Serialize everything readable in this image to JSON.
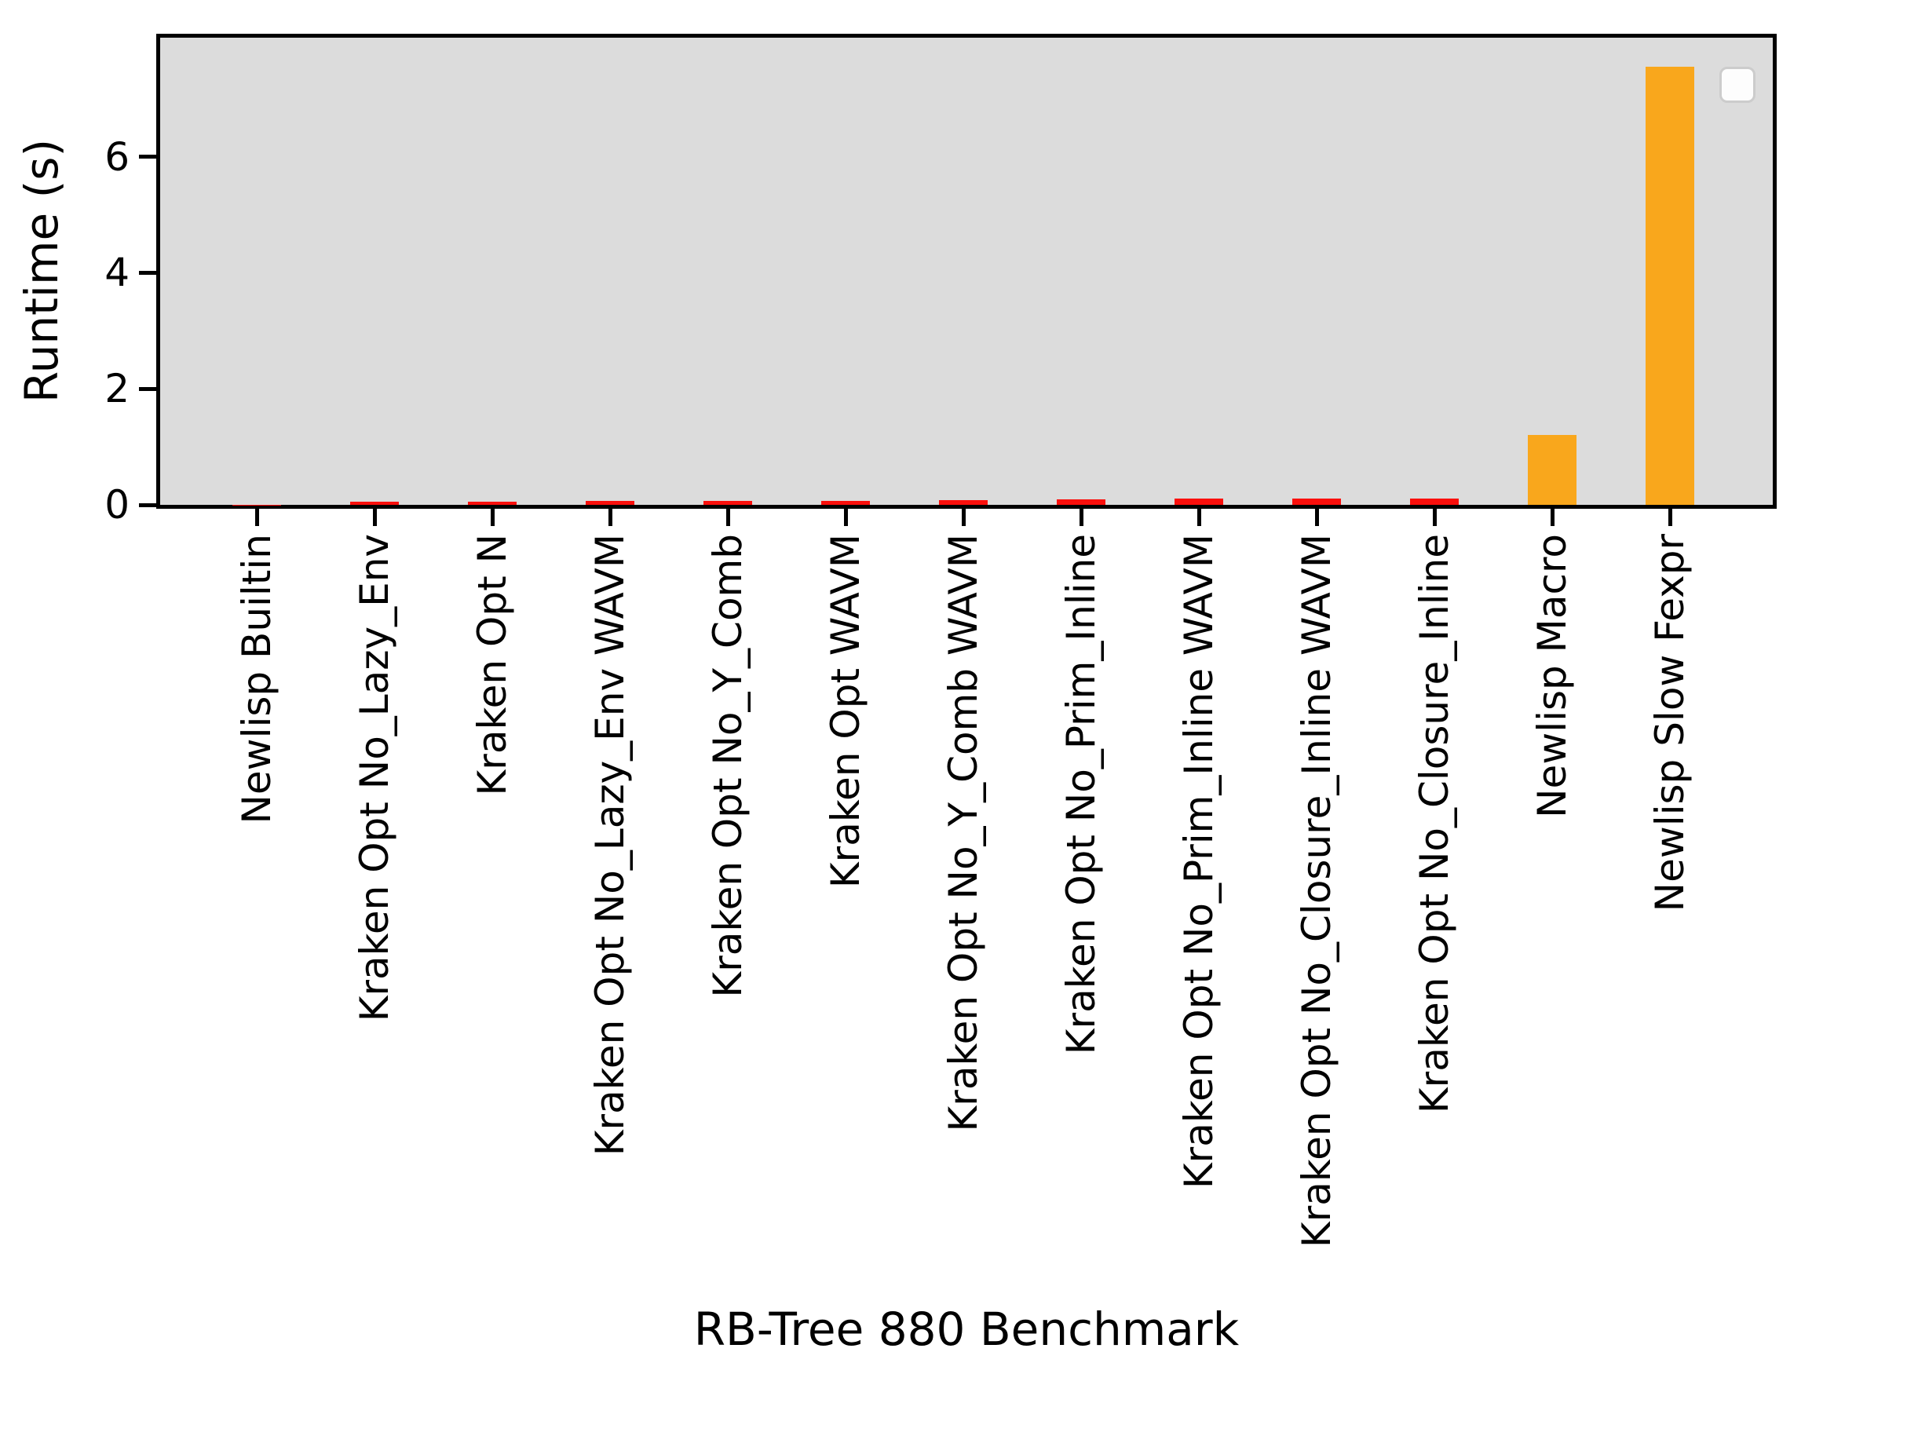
{
  "chart_data": {
    "type": "bar",
    "title": "",
    "xlabel": "RB-Tree 880 Benchmark",
    "ylabel": "Runtime (s)",
    "ylim": [
      0,
      8.05
    ],
    "yticks": [
      0,
      2,
      4,
      6
    ],
    "grid": false,
    "plot_background": "#dcdcdc",
    "legend": {
      "visible": true,
      "position": "upper right",
      "entries": []
    },
    "colors": {
      "red": "#fa0f0c",
      "orange": "#f9a71c"
    },
    "categories": [
      "Newlisp Builtin",
      "Kraken Opt No_Lazy_Env",
      "Kraken Opt N",
      "Kraken Opt No_Lazy_Env WAVM",
      "Kraken Opt No_Y_Comb",
      "Kraken Opt WAVM",
      "Kraken Opt No_Y_Comb WAVM",
      "Kraken Opt No_Prim_Inline",
      "Kraken Opt No_Prim_Inline WAVM",
      "Kraken Opt No_Closure_Inline WAVM",
      "Kraken Opt No_Closure_Inline",
      "Newlisp Macro",
      "Newlisp Slow Fexpr"
    ],
    "values": [
      0.005,
      0.06,
      0.06,
      0.065,
      0.07,
      0.07,
      0.075,
      0.1,
      0.11,
      0.11,
      0.11,
      1.2,
      7.55
    ],
    "bar_colors": [
      "#fa0f0c",
      "#fa0f0c",
      "#fa0f0c",
      "#fa0f0c",
      "#fa0f0c",
      "#fa0f0c",
      "#fa0f0c",
      "#fa0f0c",
      "#fa0f0c",
      "#fa0f0c",
      "#fa0f0c",
      "#f9a71c",
      "#f9a71c"
    ]
  }
}
